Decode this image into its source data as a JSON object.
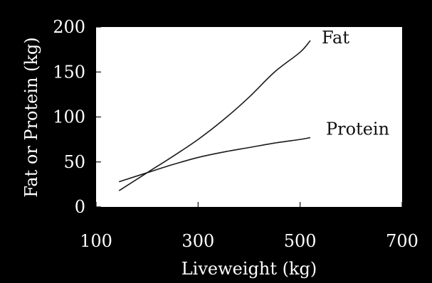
{
  "chart_data": {
    "type": "line",
    "xlabel": "Liveweight (kg)",
    "ylabel": "Fat or Protein (kg)",
    "xlim": [
      100,
      700
    ],
    "ylim": [
      0,
      200
    ],
    "xticks": [
      100,
      300,
      500,
      700
    ],
    "yticks": [
      0,
      50,
      100,
      150,
      200
    ],
    "grid": false,
    "legend": "inline labels at line ends",
    "colors": {
      "background": "#000000",
      "plot_area": "#ffffff",
      "line": "#1a1a1a"
    },
    "series": [
      {
        "name": "Fat",
        "x": [
          145,
          200,
          250,
          300,
          350,
          400,
          450,
          500,
          520
        ],
        "y": [
          18,
          38,
          56,
          75,
          97,
          122,
          150,
          172,
          185
        ]
      },
      {
        "name": "Protein",
        "x": [
          145,
          200,
          250,
          300,
          350,
          400,
          450,
          500,
          520
        ],
        "y": [
          28,
          38,
          47,
          55,
          61,
          66,
          71,
          75,
          77
        ]
      }
    ]
  }
}
